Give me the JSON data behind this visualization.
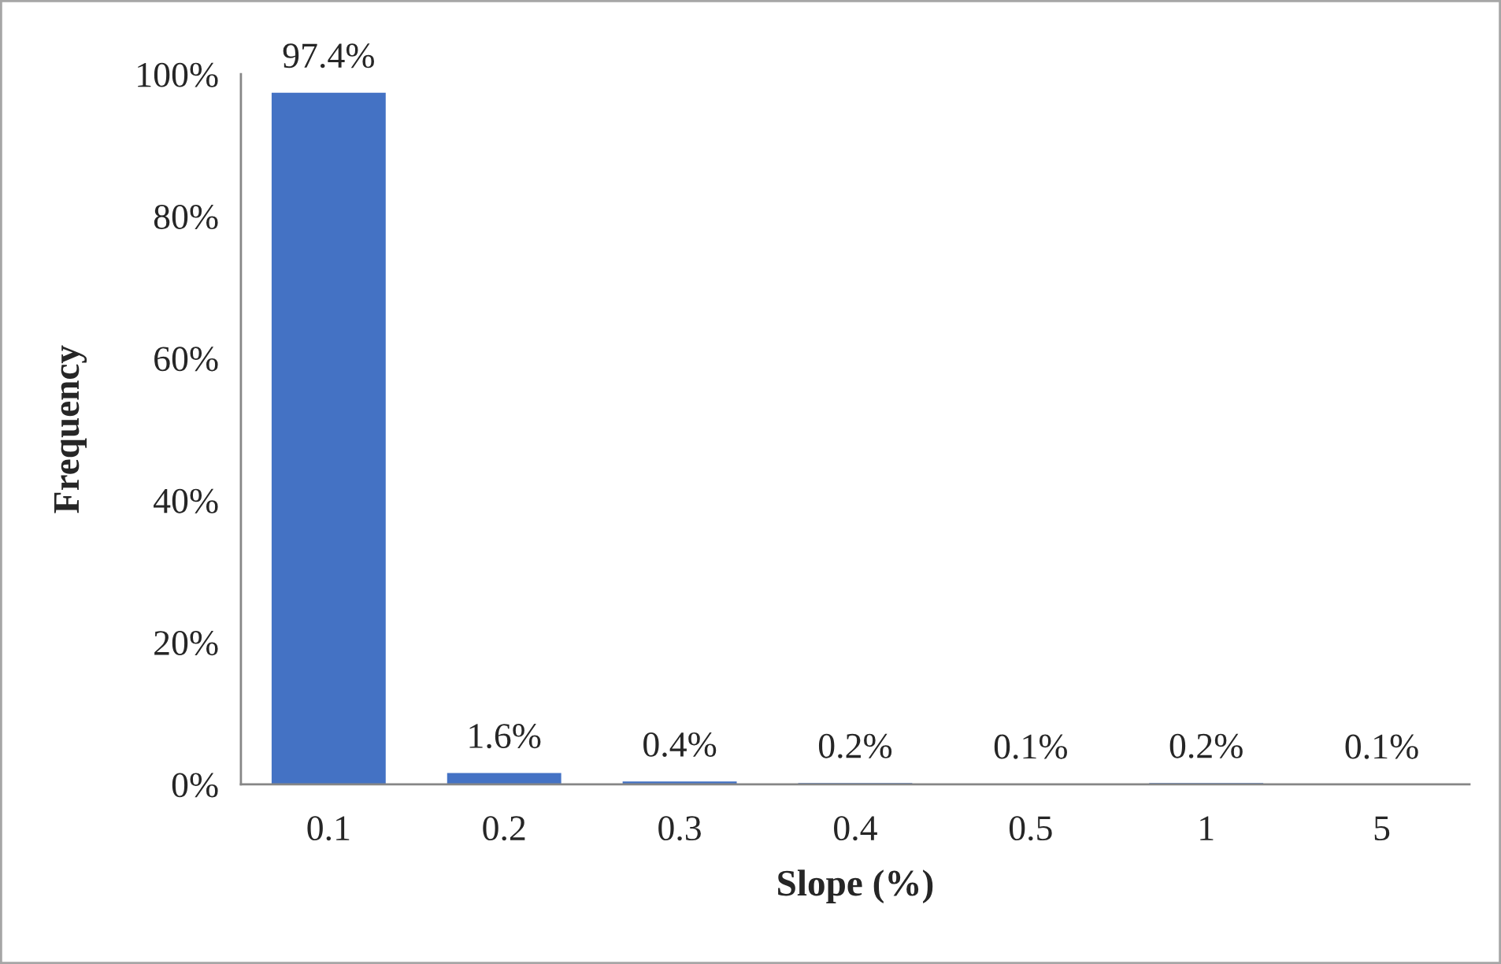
{
  "chart_data": {
    "type": "bar",
    "xlabel": "Slope (%)",
    "ylabel": "Frequency",
    "categories": [
      "0.1",
      "0.2",
      "0.3",
      "0.4",
      "0.5",
      "1",
      "5"
    ],
    "values": [
      97.4,
      1.6,
      0.4,
      0.2,
      0.1,
      0.2,
      0.1
    ],
    "color": "#4472c4",
    "value_labels": [
      "97.4%",
      "1.6%",
      "0.4%",
      "0.2%",
      "0.1%",
      "0.2%",
      "0.1%"
    ],
    "ylim": [
      0,
      100
    ],
    "yticks": [
      {
        "value": 0,
        "label": "0%"
      },
      {
        "value": 20,
        "label": "20%"
      },
      {
        "value": 40,
        "label": "40%"
      },
      {
        "value": 60,
        "label": "60%"
      },
      {
        "value": 80,
        "label": "80%"
      },
      {
        "value": 100,
        "label": "100%"
      }
    ]
  }
}
